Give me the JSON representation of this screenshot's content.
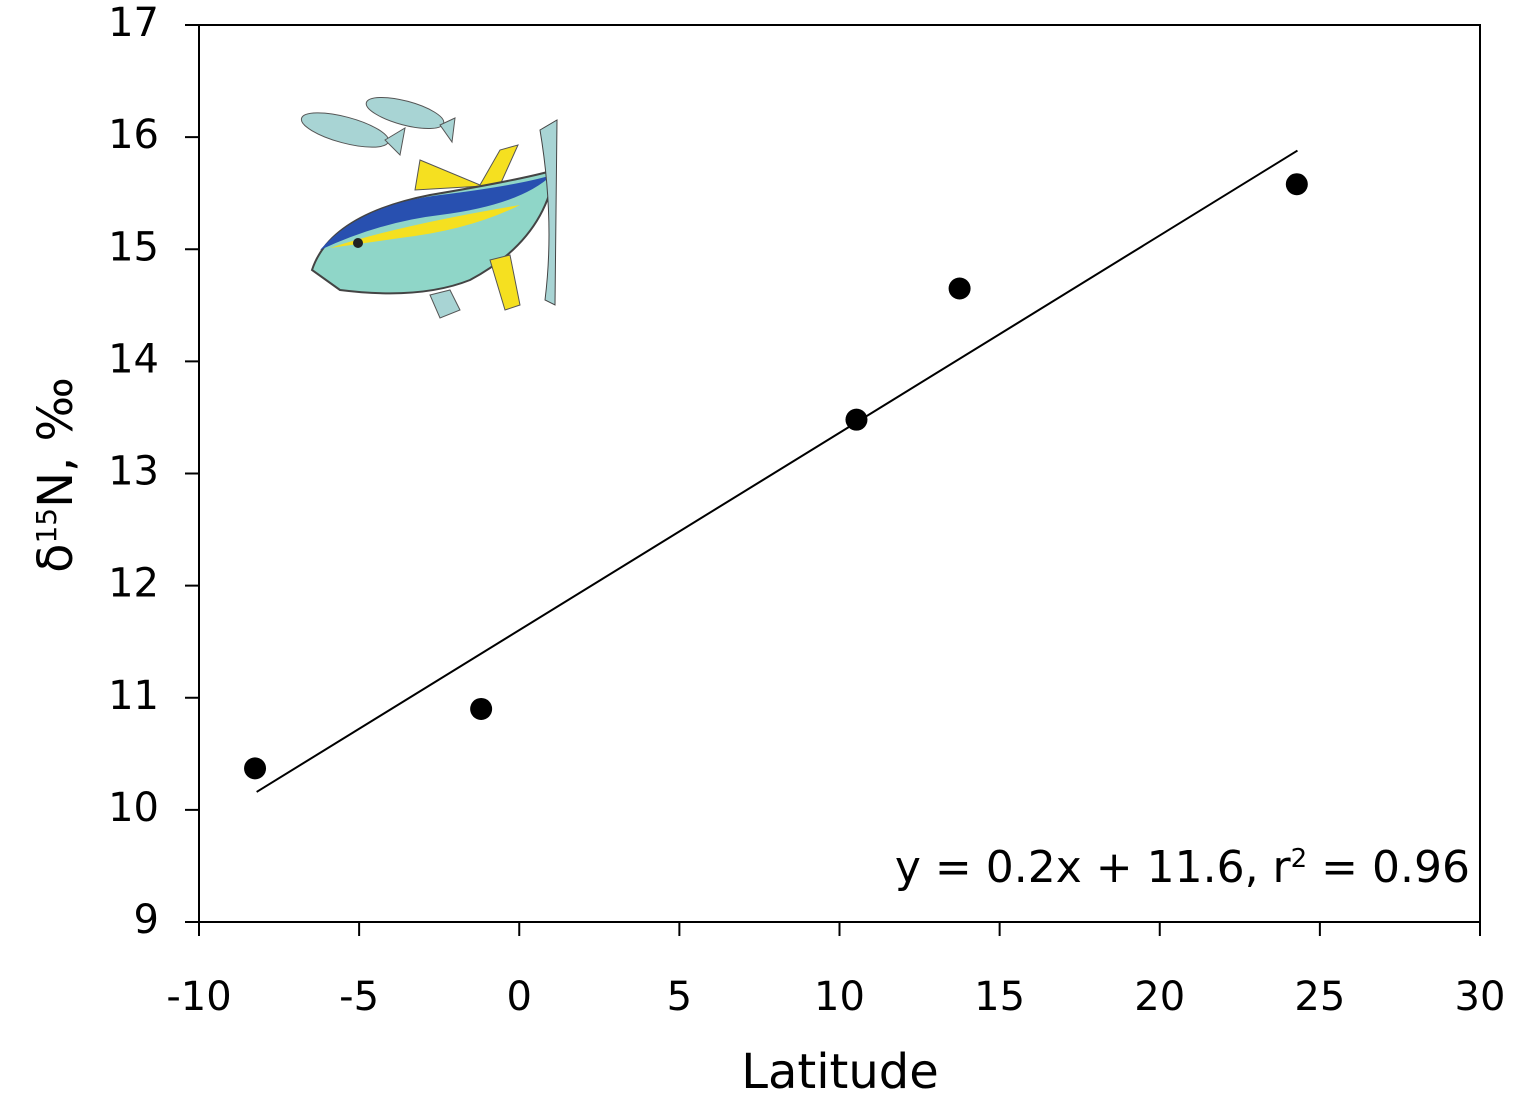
{
  "chart_data": {
    "type": "scatter",
    "x_label": "Latitude",
    "y_label": [
      "δ",
      "15",
      "N, ‰"
    ],
    "annotation": [
      "y = 0.2x + 11.6, r",
      "2",
      " = 0.96"
    ],
    "points": {
      "x": [
        -8.25,
        -1.19,
        10.53,
        13.75,
        24.28
      ],
      "y": [
        10.37,
        10.9,
        13.48,
        14.65,
        15.58
      ],
      "color": "#000000"
    },
    "fit": {
      "x": [
        -8.2,
        24.3
      ],
      "y": [
        10.16,
        15.88
      ],
      "color": "#000000"
    },
    "xlim": [
      -10,
      30
    ],
    "xticks": [
      -10,
      -5,
      0,
      5,
      10,
      15,
      20,
      25,
      30
    ],
    "ylim": [
      9,
      17
    ],
    "yticks": [
      9,
      10,
      11,
      12,
      13,
      14,
      15,
      16,
      17
    ]
  }
}
